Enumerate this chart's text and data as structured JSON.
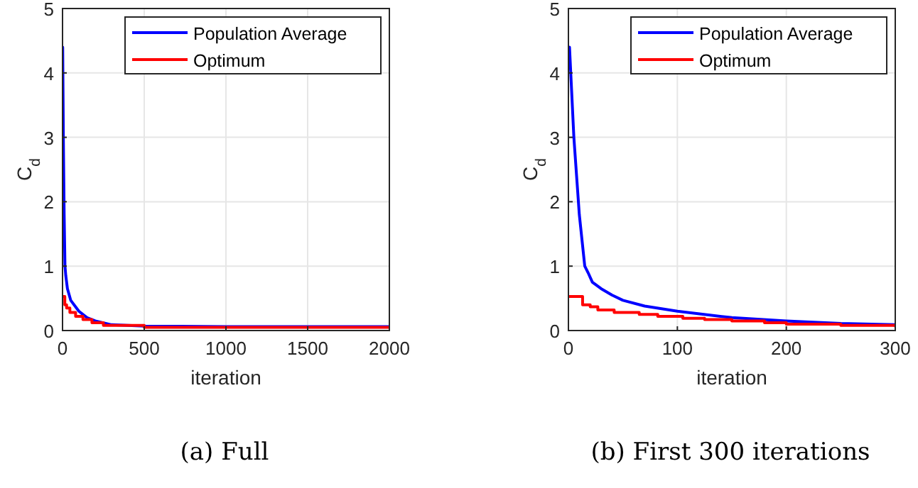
{
  "chart_data": [
    {
      "type": "line",
      "title": "(a) Full",
      "xlabel": "iteration",
      "ylabel": "C$_{d}$",
      "xlim": [
        0,
        2000
      ],
      "xticks": [
        0,
        500,
        1000,
        1500,
        2000
      ],
      "ylim": [
        0,
        5
      ],
      "yticks": [
        0,
        1,
        2,
        3,
        4,
        5
      ],
      "grid": true,
      "legend": "top right",
      "series": [
        {
          "name": "Population Average",
          "color": "#0000ff",
          "x": [
            1,
            5,
            10,
            15,
            20,
            30,
            50,
            100,
            150,
            200,
            300,
            500,
            1000,
            2000
          ],
          "values": [
            4.4,
            3,
            1.8,
            1.0,
            0.85,
            0.65,
            0.47,
            0.3,
            0.2,
            0.15,
            0.09,
            0.07,
            0.06,
            0.06
          ]
        },
        {
          "name": "Optimum",
          "color": "#ff0000",
          "type": "step",
          "x": [
            1,
            14,
            25,
            45,
            80,
            125,
            180,
            250,
            500,
            2000
          ],
          "values": [
            0.53,
            0.4,
            0.35,
            0.28,
            0.22,
            0.17,
            0.12,
            0.08,
            0.05,
            0.05
          ]
        }
      ]
    },
    {
      "type": "line",
      "title": "(b) First 300 iterations",
      "xlabel": "iteration",
      "ylabel": "C$_{d}$",
      "xlim": [
        0,
        300
      ],
      "xticks": [
        0,
        100,
        200,
        300
      ],
      "ylim": [
        0,
        5
      ],
      "yticks": [
        0,
        1,
        2,
        3,
        4,
        5
      ],
      "grid": true,
      "legend": "top right",
      "series": [
        {
          "name": "Population Average",
          "color": "#0000ff",
          "x": [
            1,
            5,
            10,
            15,
            18,
            22,
            30,
            40,
            50,
            70,
            100,
            150,
            200,
            250,
            300
          ],
          "values": [
            4.4,
            3,
            1.8,
            1.0,
            0.9,
            0.75,
            0.65,
            0.55,
            0.47,
            0.38,
            0.3,
            0.2,
            0.15,
            0.11,
            0.09
          ]
        },
        {
          "name": "Optimum",
          "color": "#ff0000",
          "type": "step",
          "x": [
            1,
            13,
            20,
            27,
            42,
            65,
            82,
            105,
            125,
            150,
            180,
            200,
            250,
            300
          ],
          "values": [
            0.53,
            0.4,
            0.37,
            0.32,
            0.28,
            0.25,
            0.22,
            0.19,
            0.17,
            0.15,
            0.12,
            0.1,
            0.08,
            0.07
          ]
        }
      ]
    }
  ]
}
